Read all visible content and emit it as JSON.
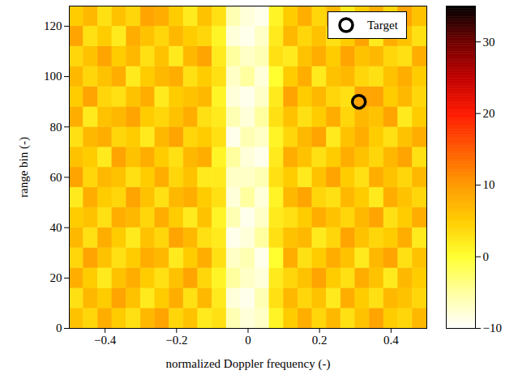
{
  "chart_data": {
    "type": "heatmap",
    "xlabel": "normalized Doppler frequency (-)",
    "ylabel": "range bin (-)",
    "xlim": [
      -0.5,
      0.5
    ],
    "ylim": [
      0,
      128
    ],
    "xticks": [
      {
        "value": -0.4,
        "label": "−0.4"
      },
      {
        "value": -0.2,
        "label": "−0.2"
      },
      0,
      0.2,
      0.4
    ],
    "yticks": [
      0,
      20,
      40,
      60,
      80,
      100,
      120
    ],
    "x_edges": [
      -0.5,
      -0.46,
      -0.42,
      -0.38,
      -0.34,
      -0.3,
      -0.26,
      -0.22,
      -0.18,
      -0.14,
      -0.1,
      -0.06,
      -0.02,
      0.02,
      0.06,
      0.1,
      0.14,
      0.18,
      0.22,
      0.26,
      0.3,
      0.34,
      0.38,
      0.42,
      0.46,
      0.5
    ],
    "y_edges": [
      0,
      8,
      16,
      24,
      32,
      40,
      48,
      56,
      64,
      72,
      80,
      88,
      96,
      104,
      112,
      120,
      128
    ],
    "cells": [
      [
        6,
        4,
        8,
        5,
        3,
        7,
        9,
        4,
        6,
        2,
        3,
        -6,
        -8,
        -7,
        1,
        5,
        8,
        4,
        7,
        3,
        6,
        9,
        5,
        4,
        7
      ],
      [
        3,
        7,
        5,
        9,
        6,
        2,
        5,
        8,
        3,
        7,
        2,
        -8,
        -9,
        -6,
        3,
        7,
        4,
        6,
        2,
        8,
        5,
        3,
        7,
        6,
        4
      ],
      [
        8,
        5,
        2,
        6,
        8,
        5,
        3,
        6,
        9,
        4,
        1,
        -5,
        -7,
        -8,
        2,
        4,
        6,
        9,
        5,
        3,
        8,
        6,
        2,
        7,
        5
      ],
      [
        4,
        9,
        6,
        3,
        5,
        8,
        7,
        2,
        5,
        8,
        3,
        -7,
        -6,
        -9,
        0,
        8,
        3,
        5,
        8,
        6,
        2,
        7,
        9,
        3,
        6
      ],
      [
        7,
        3,
        8,
        5,
        2,
        6,
        4,
        9,
        7,
        3,
        2,
        -9,
        -8,
        -5,
        3,
        6,
        7,
        2,
        4,
        9,
        6,
        4,
        5,
        8,
        2
      ],
      [
        5,
        6,
        3,
        8,
        7,
        4,
        8,
        5,
        2,
        6,
        1,
        -6,
        -9,
        -7,
        2,
        3,
        5,
        8,
        6,
        4,
        7,
        9,
        3,
        5,
        8
      ],
      [
        2,
        8,
        5,
        4,
        9,
        6,
        3,
        7,
        8,
        5,
        3,
        -8,
        -5,
        -8,
        1,
        7,
        9,
        4,
        3,
        7,
        5,
        2,
        8,
        6,
        4
      ],
      [
        9,
        4,
        7,
        6,
        3,
        5,
        8,
        4,
        6,
        2,
        2,
        -7,
        -7,
        -6,
        3,
        5,
        2,
        6,
        9,
        5,
        3,
        8,
        6,
        4,
        7
      ],
      [
        6,
        5,
        2,
        9,
        6,
        8,
        5,
        3,
        7,
        8,
        1,
        -5,
        -8,
        -9,
        2,
        8,
        6,
        3,
        5,
        8,
        6,
        4,
        7,
        9,
        3
      ],
      [
        3,
        7,
        8,
        4,
        5,
        2,
        7,
        9,
        4,
        5,
        3,
        -9,
        -6,
        -7,
        1,
        4,
        7,
        9,
        2,
        6,
        8,
        5,
        3,
        6,
        8
      ],
      [
        8,
        2,
        6,
        7,
        9,
        5,
        4,
        6,
        8,
        3,
        2,
        -6,
        -8,
        -5,
        3,
        6,
        3,
        5,
        8,
        4,
        7,
        6,
        9,
        2,
        5
      ],
      [
        5,
        9,
        4,
        3,
        6,
        8,
        2,
        5,
        6,
        7,
        1,
        -8,
        -9,
        -7,
        2,
        9,
        5,
        7,
        4,
        3,
        9,
        9,
        5,
        7,
        4
      ],
      [
        7,
        4,
        6,
        8,
        2,
        5,
        7,
        8,
        3,
        5,
        3,
        -7,
        -5,
        -8,
        0,
        5,
        8,
        2,
        6,
        7,
        4,
        3,
        6,
        8,
        5
      ],
      [
        4,
        6,
        9,
        5,
        7,
        3,
        6,
        2,
        7,
        9,
        2,
        -5,
        -7,
        -6,
        3,
        2,
        6,
        8,
        5,
        9,
        6,
        7,
        4,
        3,
        8
      ],
      [
        9,
        3,
        5,
        2,
        8,
        6,
        4,
        7,
        5,
        4,
        1,
        -8,
        -9,
        -7,
        2,
        7,
        4,
        6,
        3,
        5,
        9,
        2,
        8,
        6,
        3
      ],
      [
        5,
        7,
        3,
        6,
        4,
        9,
        8,
        5,
        2,
        6,
        3,
        -6,
        -8,
        -9,
        1,
        5,
        8,
        4,
        7,
        2,
        5,
        8,
        4,
        9,
        6
      ]
    ],
    "colorbar": {
      "range": [
        -10,
        35
      ],
      "ticks": [
        {
          "value": -10,
          "label": "−10"
        },
        0,
        10,
        20,
        30
      ]
    },
    "target": {
      "label": "Target",
      "x": 0.31,
      "y": 90
    },
    "legend": "top-right"
  }
}
